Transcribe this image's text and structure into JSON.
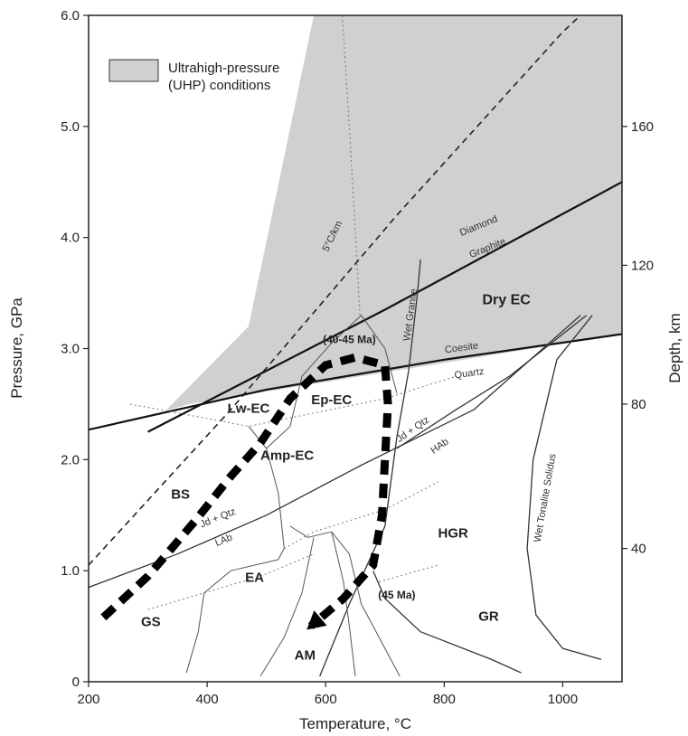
{
  "chart_data": {
    "type": "line",
    "title": "",
    "xlabel": "Temperature, °C",
    "ylabel": "Pressure, GPa",
    "y2label": "Depth, km",
    "xlim": [
      200,
      1100
    ],
    "ylim": [
      0,
      6.0
    ],
    "xticks": [
      "200",
      "400",
      "600",
      "800",
      "1000"
    ],
    "yticks": [
      "0",
      "1.0",
      "2.0",
      "3.0",
      "4.0",
      "5.0",
      "6.0"
    ],
    "y2ticks": [
      {
        "label": "40",
        "p": 1.2
      },
      {
        "label": "80",
        "p": 2.5
      },
      {
        "label": "120",
        "p": 3.75
      },
      {
        "label": "160",
        "p": 5.0
      }
    ],
    "legend": {
      "label_line1": "Ultrahigh-pressure",
      "label_line2": "(UHP) conditions",
      "color": "#d0d0d0",
      "position": "top-left"
    },
    "uhp_region": [
      [
        580,
        6.0
      ],
      [
        1100,
        6.0
      ],
      [
        1100,
        3.13
      ],
      [
        370,
        2.5
      ],
      [
        330,
        2.44
      ],
      [
        470,
        3.2
      ]
    ],
    "lines": [
      {
        "name": "5°C/km",
        "style": "dashed",
        "points": [
          [
            200,
            1.05
          ],
          [
            440,
            2.45
          ],
          [
            720,
            4.2
          ],
          [
            1000,
            5.85
          ],
          [
            1030,
            6.0
          ]
        ]
      },
      {
        "name": "Coesite-Quartz",
        "style": "solid-bold",
        "points": [
          [
            200,
            2.27
          ],
          [
            500,
            2.63
          ],
          [
            800,
            2.9
          ],
          [
            1100,
            3.13
          ]
        ]
      },
      {
        "name": "Diamond-Graphite",
        "style": "solid-bold",
        "points": [
          [
            300,
            2.25
          ],
          [
            700,
            3.35
          ],
          [
            1100,
            4.5
          ]
        ]
      },
      {
        "name": "Wet Granite",
        "style": "solid",
        "points": [
          [
            590,
            0.05
          ],
          [
            640,
            0.7
          ],
          [
            700,
            1.4
          ],
          [
            720,
            2.2
          ],
          [
            740,
            2.8
          ],
          [
            755,
            3.5
          ],
          [
            760,
            3.8
          ]
        ]
      },
      {
        "name": "Wet Tonalite Solidus",
        "style": "solid",
        "points": [
          [
            1065,
            0.2
          ],
          [
            1000,
            0.3
          ],
          [
            955,
            0.6
          ],
          [
            940,
            1.2
          ],
          [
            950,
            2.0
          ],
          [
            990,
            2.9
          ],
          [
            1050,
            3.3
          ]
        ]
      },
      {
        "name": "Wet Granite low-P",
        "style": "solid",
        "points": [
          [
            680,
            1.0
          ],
          [
            700,
            0.75
          ],
          [
            760,
            0.45
          ],
          [
            880,
            0.2
          ],
          [
            930,
            0.08
          ]
        ]
      },
      {
        "name": "Jd + Qtz / LAb",
        "style": "solid",
        "points": [
          [
            200,
            0.85
          ],
          [
            350,
            1.15
          ],
          [
            500,
            1.5
          ],
          [
            660,
            1.95
          ],
          [
            850,
            2.45
          ],
          [
            1030,
            3.3
          ]
        ]
      },
      {
        "name": "Jd + Qtz / HAb",
        "style": "solid",
        "points": [
          [
            720,
            2.1
          ],
          [
            820,
            2.45
          ],
          [
            910,
            2.75
          ],
          [
            1040,
            3.3
          ]
        ]
      },
      {
        "name": "Gridline P",
        "style": "dotted",
        "points": [
          [
            270,
            2.5
          ],
          [
            470,
            2.3
          ],
          [
            700,
            2.55
          ],
          [
            820,
            2.75
          ]
        ]
      },
      {
        "name": "Gridline T",
        "style": "dotted",
        "points": [
          [
            658,
            3.3
          ],
          [
            640,
            5.0
          ],
          [
            628,
            6.0
          ]
        ]
      },
      {
        "name": "Gridline mid",
        "style": "dotted",
        "points": [
          [
            530,
            1.2
          ],
          [
            580,
            1.35
          ],
          [
            700,
            1.55
          ],
          [
            790,
            1.8
          ]
        ]
      },
      {
        "name": "Gridline low",
        "style": "dotted",
        "points": [
          [
            300,
            0.65
          ],
          [
            395,
            0.8
          ],
          [
            490,
            0.95
          ],
          [
            580,
            1.15
          ]
        ]
      },
      {
        "name": "Gridline lower",
        "style": "dotted",
        "points": [
          [
            690,
            0.9
          ],
          [
            790,
            1.05
          ]
        ]
      },
      {
        "name": "Facies boundary 1",
        "style": "solid-thin",
        "points": [
          [
            365,
            0.08
          ],
          [
            385,
            0.45
          ],
          [
            395,
            0.8
          ],
          [
            440,
            1.0
          ],
          [
            520,
            1.1
          ],
          [
            530,
            1.2
          ]
        ]
      },
      {
        "name": "Facies boundary 2",
        "style": "solid-thin",
        "points": [
          [
            530,
            1.2
          ],
          [
            520,
            1.7
          ],
          [
            500,
            2.1
          ],
          [
            470,
            2.3
          ]
        ]
      },
      {
        "name": "Facies boundary 3",
        "style": "solid-thin",
        "points": [
          [
            500,
            2.1
          ],
          [
            540,
            2.3
          ],
          [
            560,
            2.75
          ],
          [
            610,
            3.05
          ],
          [
            660,
            3.3
          ],
          [
            700,
            3.0
          ],
          [
            720,
            2.6
          ]
        ]
      },
      {
        "name": "Facies boundary 4",
        "style": "solid-thin",
        "points": [
          [
            540,
            1.4
          ],
          [
            570,
            1.3
          ],
          [
            610,
            1.35
          ],
          [
            640,
            1.15
          ],
          [
            660,
            0.7
          ],
          [
            700,
            0.3
          ],
          [
            725,
            0.05
          ]
        ]
      },
      {
        "name": "Facies boundary 5",
        "style": "solid-thin",
        "points": [
          [
            580,
            1.3
          ],
          [
            560,
            0.8
          ],
          [
            530,
            0.4
          ],
          [
            490,
            0.05
          ]
        ]
      },
      {
        "name": "Facies boundary 6",
        "style": "solid-thin",
        "points": [
          [
            610,
            1.35
          ],
          [
            630,
            0.9
          ],
          [
            640,
            0.5
          ],
          [
            650,
            0.05
          ]
        ]
      }
    ],
    "pt_path": {
      "name": "P-T path",
      "points": [
        [
          225,
          0.58
        ],
        [
          300,
          0.95
        ],
        [
          380,
          1.45
        ],
        [
          440,
          1.85
        ],
        [
          490,
          2.15
        ],
        [
          540,
          2.55
        ],
        [
          600,
          2.85
        ],
        [
          650,
          2.92
        ],
        [
          700,
          2.85
        ],
        [
          705,
          2.5
        ],
        [
          700,
          2.0
        ],
        [
          695,
          1.5
        ],
        [
          680,
          1.05
        ],
        [
          630,
          0.75
        ],
        [
          575,
          0.5
        ]
      ]
    },
    "regions": [
      {
        "label": "Dry EC",
        "x": 905,
        "p": 3.4,
        "big": true
      },
      {
        "label": "Ep-EC",
        "x": 610,
        "p": 2.5,
        "big": false
      },
      {
        "label": "Lw-EC",
        "x": 470,
        "p": 2.42,
        "big": false
      },
      {
        "label": "Amp-EC",
        "x": 535,
        "p": 2.0,
        "big": false
      },
      {
        "label": "BS",
        "x": 355,
        "p": 1.65,
        "big": false
      },
      {
        "label": "HGR",
        "x": 815,
        "p": 1.3,
        "big": false
      },
      {
        "label": "EA",
        "x": 480,
        "p": 0.9,
        "big": false
      },
      {
        "label": "GS",
        "x": 305,
        "p": 0.5,
        "big": false
      },
      {
        "label": "GR",
        "x": 875,
        "p": 0.55,
        "big": false
      },
      {
        "label": "AM",
        "x": 565,
        "p": 0.2,
        "big": false
      }
    ],
    "curve_labels": [
      {
        "text": "Diamond",
        "x": 860,
        "p": 4.08,
        "rotate": -22,
        "bold": true
      },
      {
        "text": "Graphite",
        "x": 875,
        "p": 3.88,
        "rotate": -22,
        "bold": false
      },
      {
        "text": "Coesite",
        "x": 830,
        "p": 2.98,
        "rotate": -8,
        "bold": true
      },
      {
        "text": "Quartz",
        "x": 843,
        "p": 2.75,
        "rotate": -8,
        "bold": false
      },
      {
        "text": "Jd + Qtz",
        "x": 750,
        "p": 2.25,
        "rotate": -35,
        "bold": false
      },
      {
        "text": "HAb",
        "x": 795,
        "p": 2.1,
        "rotate": -35,
        "bold": false
      },
      {
        "text": "Jd + Qtz",
        "x": 420,
        "p": 1.45,
        "rotate": -22,
        "bold": false
      },
      {
        "text": "LAb",
        "x": 430,
        "p": 1.25,
        "rotate": -22,
        "bold": false
      },
      {
        "text": "Wet Granite",
        "x": 748,
        "p": 3.3,
        "rotate": -82,
        "bold": false
      },
      {
        "text": "Wet Tonalite Solidus",
        "x": 975,
        "p": 1.65,
        "rotate": -80,
        "bold": false
      },
      {
        "text": "5°C/km",
        "x": 616,
        "p": 4.0,
        "rotate": -64,
        "bold": false
      }
    ],
    "ages": [
      {
        "text": "(40-45 Ma)",
        "x": 640,
        "p": 3.05
      },
      {
        "text": "(45 Ma)",
        "x": 720,
        "p": 0.75
      }
    ]
  }
}
